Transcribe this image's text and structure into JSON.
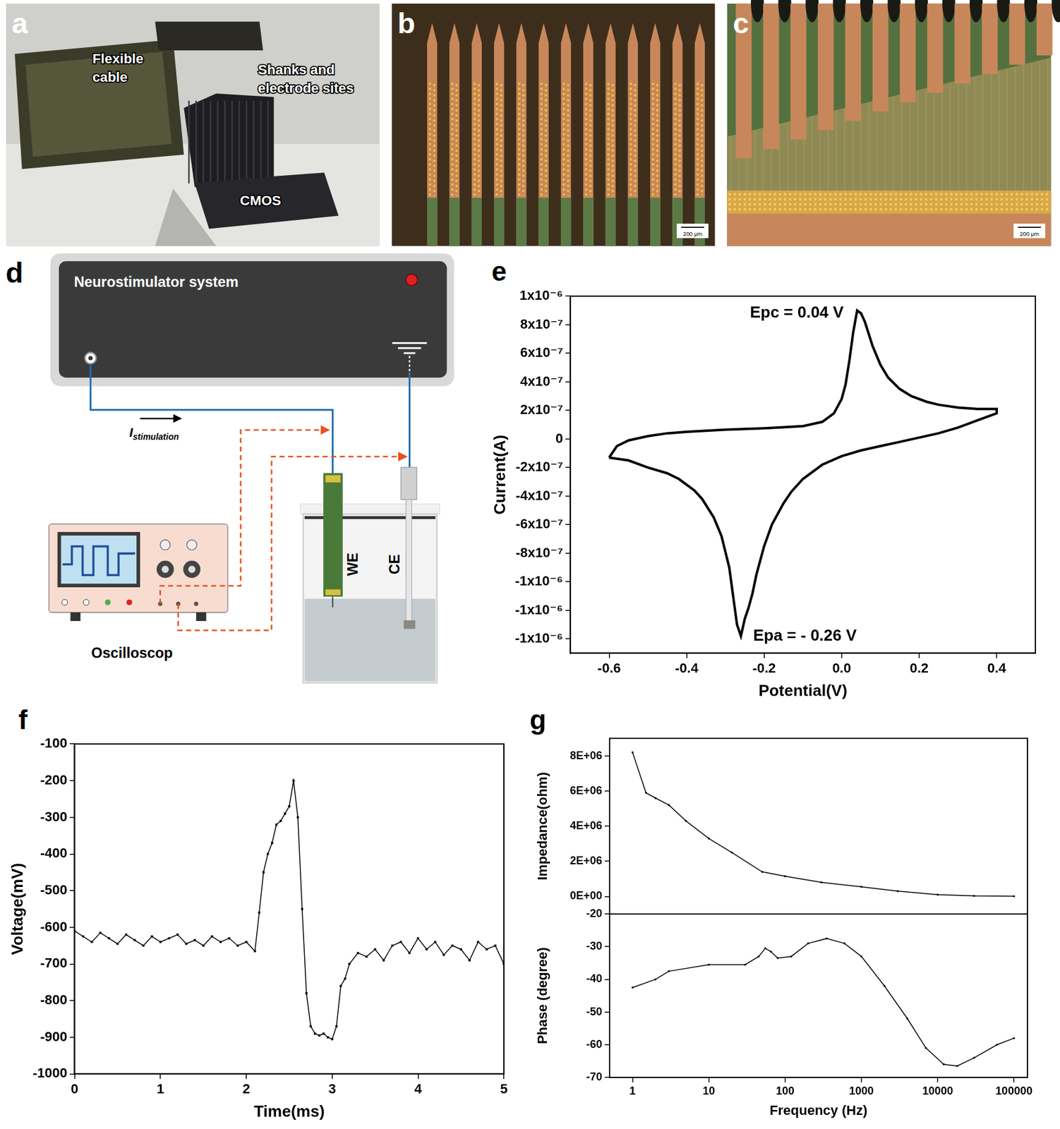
{
  "photos": [
    {
      "panel": "a",
      "labels": [
        "Flexible cable",
        "Shanks and electrode sites",
        "CMOS"
      ]
    },
    {
      "panel": "b",
      "scale_bar": "200 μm"
    },
    {
      "panel": "c",
      "scale_bar": "200 μm"
    }
  ],
  "diagram": {
    "panel": "d",
    "instrument": "Neurostimulator system",
    "current": {
      "symbol": "I",
      "subscript": "stimulation"
    },
    "oscilloscope": "Oscilloscop",
    "electrodes": [
      "WE",
      "CE"
    ]
  },
  "chart_data": [
    {
      "panel": "e",
      "type": "line",
      "x_label": "Potential(V)",
      "y_label": "Current(A)",
      "color": "#000000",
      "marker": "none",
      "grid": false,
      "x": [
        -0.6,
        -0.58,
        -0.55,
        -0.5,
        -0.45,
        -0.4,
        -0.3,
        -0.2,
        -0.1,
        -0.05,
        -0.02,
        0.0,
        0.01,
        0.02,
        0.03,
        0.04,
        0.05,
        0.06,
        0.08,
        0.1,
        0.12,
        0.15,
        0.18,
        0.22,
        0.25,
        0.3,
        0.35,
        0.4,
        0.4,
        0.35,
        0.3,
        0.25,
        0.2,
        0.15,
        0.1,
        0.05,
        0.0,
        -0.05,
        -0.1,
        -0.13,
        -0.15,
        -0.18,
        -0.2,
        -0.22,
        -0.23,
        -0.24,
        -0.25,
        -0.26,
        -0.27,
        -0.28,
        -0.29,
        -0.31,
        -0.33,
        -0.36,
        -0.38,
        -0.42,
        -0.45,
        -0.5,
        -0.55,
        -0.6
      ],
      "values": [
        -1.3e-07,
        -5e-08,
        -1e-08,
        2e-08,
        4e-08,
        5e-08,
        6.5e-08,
        7.5e-08,
        9e-08,
        1.2e-07,
        1.8e-07,
        2.8e-07,
        3.8e-07,
        5.5e-07,
        7.5e-07,
        9e-07,
        8.8e-07,
        8.2e-07,
        6.5e-07,
        5.2e-07,
        4.3e-07,
        3.5e-07,
        3e-07,
        2.6e-07,
        2.4e-07,
        2.2e-07,
        2.1e-07,
        2.1e-07,
        1.8e-07,
        1.3e-07,
        8e-08,
        4e-08,
        1e-08,
        -2e-08,
        -5e-08,
        -8e-08,
        -1.2e-07,
        -1.8e-07,
        -2.8e-07,
        -3.7e-07,
        -4.5e-07,
        -6e-07,
        -7.5e-07,
        -9.5e-07,
        -1.08e-06,
        -1.18e-06,
        -1.26e-06,
        -1.38e-06,
        -1.3e-06,
        -1.1e-06,
        -9e-07,
        -6.8e-07,
        -5.5e-07,
        -4.2e-07,
        -3.6e-07,
        -2.8e-07,
        -2.4e-07,
        -2e-07,
        -1.5e-07,
        -1.3e-07
      ],
      "xlim": [
        -0.7,
        0.5
      ],
      "xticks": [
        -0.6,
        -0.4,
        -0.2,
        {
          "value": 0,
          "label": "0.0"
        },
        0.2,
        0.4
      ],
      "ylim": [
        -1.5e-06,
        1e-06
      ],
      "yticks": [
        {
          "value": -1.4e-06,
          "label": "-1x10⁻⁶"
        },
        {
          "value": -1.2e-06,
          "label": "-1x10⁻⁶"
        },
        {
          "value": -1e-06,
          "label": "-1x10⁻⁶"
        },
        {
          "value": -8e-07,
          "label": "-8x10⁻⁷"
        },
        {
          "value": -6e-07,
          "label": "-6x10⁻⁷"
        },
        {
          "value": -4e-07,
          "label": "-4x10⁻⁷"
        },
        {
          "value": -2e-07,
          "label": "-2x10⁻⁷"
        },
        0,
        {
          "value": 2e-07,
          "label": "2x10⁻⁷"
        },
        {
          "value": 4e-07,
          "label": "4x10⁻⁷"
        },
        {
          "value": 6e-07,
          "label": "6x10⁻⁷"
        },
        {
          "value": 8e-07,
          "label": "8x10⁻⁷"
        },
        {
          "value": 1e-06,
          "label": "1x10⁻⁶"
        }
      ],
      "annotations": [
        {
          "text": "Epc = 0.04 V",
          "x": 0.04,
          "y": 9e-07
        },
        {
          "text": "Epa = - 0.26 V",
          "x": -0.26,
          "y": -1.38e-06
        }
      ]
    },
    {
      "panel": "f",
      "type": "line",
      "x_label": "Time(ms)",
      "y_label": "Voltage(mV)",
      "color": "#000000",
      "marker": "square",
      "grid": false,
      "x": [
        0,
        0.1,
        0.2,
        0.3,
        0.4,
        0.5,
        0.6,
        0.7,
        0.8,
        0.9,
        1.0,
        1.1,
        1.2,
        1.3,
        1.4,
        1.5,
        1.6,
        1.7,
        1.8,
        1.9,
        2.0,
        2.1,
        2.15,
        2.2,
        2.25,
        2.3,
        2.35,
        2.4,
        2.45,
        2.5,
        2.55,
        2.6,
        2.65,
        2.7,
        2.75,
        2.8,
        2.85,
        2.9,
        2.95,
        3.0,
        3.05,
        3.1,
        3.15,
        3.2,
        3.3,
        3.4,
        3.5,
        3.6,
        3.7,
        3.8,
        3.9,
        4.0,
        4.1,
        4.2,
        4.3,
        4.4,
        4.5,
        4.6,
        4.7,
        4.8,
        4.9,
        5.0
      ],
      "values": [
        -610,
        -625,
        -640,
        -615,
        -630,
        -645,
        -620,
        -635,
        -650,
        -625,
        -640,
        -630,
        -620,
        -645,
        -635,
        -650,
        -625,
        -640,
        -630,
        -650,
        -640,
        -665,
        -560,
        -450,
        -400,
        -370,
        -320,
        -310,
        -290,
        -270,
        -200,
        -300,
        -550,
        -780,
        -870,
        -890,
        -895,
        -890,
        -900,
        -905,
        -870,
        -760,
        -740,
        -700,
        -670,
        -680,
        -660,
        -690,
        -650,
        -640,
        -670,
        -630,
        -660,
        -640,
        -675,
        -650,
        -660,
        -690,
        -640,
        -660,
        -650,
        -700
      ],
      "xlim": [
        0,
        5
      ],
      "xticks": [
        0,
        1,
        2,
        3,
        4,
        5
      ],
      "ylim": [
        -1000,
        -100
      ],
      "yticks": [
        -1000,
        -900,
        -800,
        -700,
        -600,
        -500,
        -400,
        -300,
        -200,
        -100
      ]
    },
    {
      "panel": "g",
      "type": "line",
      "y_label": "Impedance(ohm)",
      "color": "#000000",
      "marker": "square",
      "grid": false,
      "log": "x",
      "tick_labels": "y",
      "x": [
        1,
        1.5,
        2,
        3,
        5,
        10,
        20,
        50,
        100,
        300,
        1000,
        3000,
        10000,
        30000,
        100000
      ],
      "values": [
        8200000,
        5900000,
        5600000,
        5200000,
        4300000,
        3300000,
        2500000,
        1400000,
        1150000,
        800000,
        550000,
        300000,
        100000,
        30000,
        10000
      ],
      "xlim": [
        0.5,
        150000
      ],
      "ylim": [
        -1000000,
        9000000
      ],
      "yticks": [
        {
          "value": 0,
          "label": "0E+00"
        },
        {
          "value": 2000000,
          "label": "2E+06"
        },
        {
          "value": 4000000,
          "label": "4E+06"
        },
        {
          "value": 6000000,
          "label": "6E+06"
        },
        {
          "value": 8000000,
          "label": "8E+06"
        }
      ]
    },
    {
      "type": "line",
      "x_label": "Frequency (Hz)",
      "y_label": "Phase (degree)",
      "color": "#000000",
      "marker": "square",
      "grid": false,
      "log": "x",
      "x": [
        1,
        2,
        3,
        10,
        30,
        45,
        55,
        65,
        80,
        120,
        200,
        350,
        600,
        1000,
        2000,
        4000,
        7000,
        12000,
        18000,
        30000,
        60000,
        100000
      ],
      "values": [
        -42.5,
        -40,
        -37.5,
        -35.5,
        -35.5,
        -33,
        -30.5,
        -31.5,
        -33.5,
        -33,
        -29,
        -27.5,
        -29,
        -33,
        -42,
        -52,
        -61,
        -66,
        -66.5,
        -64,
        -60,
        -58
      ],
      "xlim": [
        0.5,
        150000
      ],
      "xticks": [
        1,
        10,
        100,
        1000,
        10000,
        100000
      ],
      "ylim": [
        -70,
        -20
      ],
      "yticks": [
        -70,
        -60,
        -50,
        -40,
        -30,
        -20
      ]
    }
  ]
}
